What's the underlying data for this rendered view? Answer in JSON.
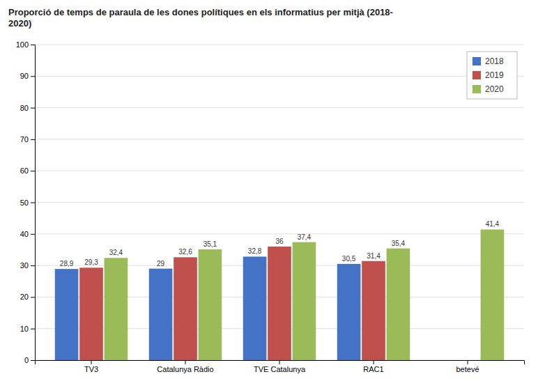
{
  "chart_data": {
    "type": "bar",
    "title": "Proporció de temps de paraula de les dones polítiques en els informatius per mitjà (2018-\n2020)",
    "categories": [
      "TV3",
      "Catalunya Ràdio",
      "TVE Catalunya",
      "RAC1",
      "betevé"
    ],
    "series": [
      {
        "name": "2018",
        "color": "#4472C4",
        "values": [
          28.9,
          29.0,
          32.8,
          30.5,
          null
        ],
        "value_labels": [
          "28,9",
          "29",
          "32,8",
          "30,5",
          null
        ]
      },
      {
        "name": "2019",
        "color": "#C0504D",
        "values": [
          29.3,
          32.6,
          36.0,
          31.4,
          null
        ],
        "value_labels": [
          "29,3",
          "32,6",
          "36",
          "31,4",
          null
        ]
      },
      {
        "name": "2020",
        "color": "#9BBB59",
        "values": [
          32.4,
          35.1,
          37.4,
          35.4,
          41.4
        ],
        "value_labels": [
          "32,4",
          "35,1",
          "37,4",
          "35,4",
          "41,4"
        ]
      }
    ],
    "ylim": [
      0,
      100
    ],
    "yticks": [
      0,
      10,
      20,
      30,
      40,
      50,
      60,
      70,
      80,
      90,
      100
    ],
    "grid": true,
    "legend": "upper right",
    "data_labels": true
  }
}
